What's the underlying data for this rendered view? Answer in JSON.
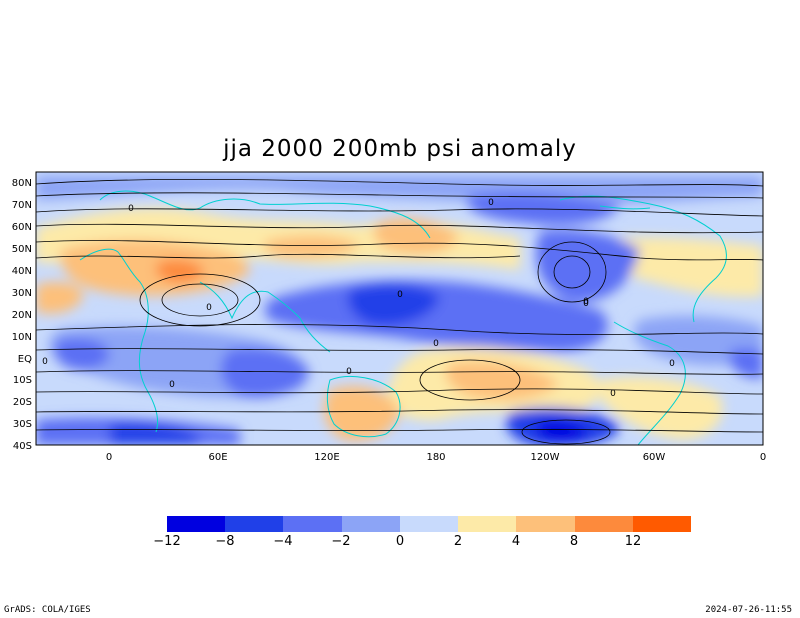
{
  "title": "jja 2000 200mb psi anomaly",
  "lat_labels": [
    "80N",
    "70N",
    "60N",
    "50N",
    "40N",
    "30N",
    "20N",
    "10N",
    "EQ",
    "10S",
    "20S",
    "30S",
    "40S"
  ],
  "lon_labels": [
    "0",
    "60E",
    "120E",
    "180",
    "120W",
    "60W",
    "0"
  ],
  "colorbar": {
    "colors": [
      "#0000e0",
      "#2040e8",
      "#5c70f4",
      "#8ca4f6",
      "#c8dafc",
      "#fdeaa8",
      "#fdc07a",
      "#fd8a3c",
      "#ff5a00"
    ],
    "labels": [
      "−12",
      "−8",
      "−4",
      "−2",
      "0",
      "2",
      "4",
      "8",
      "12"
    ]
  },
  "contour_labels": [
    "0",
    "0",
    "0",
    "0",
    "0",
    "0",
    "0",
    "0",
    "0",
    "0",
    "0",
    "0"
  ],
  "footer": {
    "credit": "GrADS: COLA/IGES",
    "timestamp": "2024-07-26-11:55"
  }
}
